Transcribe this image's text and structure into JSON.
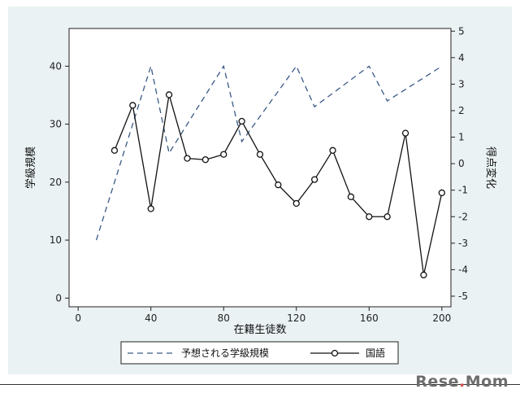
{
  "chart_data": {
    "type": "line",
    "title": "",
    "xlabel": "在籍生徒数",
    "ylabel_left": "学級規模",
    "ylabel_right": "得点変化",
    "xlim": [
      -5,
      205
    ],
    "ylim_left": [
      -1.5,
      46.5
    ],
    "ylim_right": [
      -5.4,
      5.1
    ],
    "x_ticks": [
      0,
      40,
      80,
      120,
      160,
      200
    ],
    "y_left_ticks": [
      0,
      10,
      20,
      30,
      40
    ],
    "y_right_ticks": [
      5,
      4,
      3,
      2,
      1,
      0,
      -1,
      -2,
      -3,
      -4,
      -5
    ],
    "grid": false,
    "legend_position": "bottom",
    "series": [
      {
        "name": "予想される学級規模",
        "axis": "left",
        "style": "dashed",
        "color": "#3a5a86",
        "x": [
          10,
          40,
          50,
          80,
          90,
          120,
          130,
          160,
          170,
          200
        ],
        "y": [
          10,
          40,
          25,
          40,
          27,
          40,
          33,
          40,
          34,
          40
        ]
      },
      {
        "name": "国語",
        "axis": "right",
        "style": "solid-circle-markers",
        "color": "#111111",
        "x": [
          20,
          30,
          40,
          50,
          60,
          70,
          80,
          90,
          100,
          110,
          120,
          130,
          140,
          150,
          160,
          170,
          180,
          190,
          200
        ],
        "y": [
          0.5,
          2.2,
          -1.7,
          2.6,
          0.2,
          0.15,
          0.35,
          1.6,
          0.35,
          -0.8,
          -1.5,
          -0.6,
          0.5,
          -1.25,
          -2.0,
          -2.0,
          1.15,
          -4.2,
          -1.1
        ]
      }
    ]
  },
  "watermark": {
    "text_before": "Rese",
    "text_after": "Mom"
  }
}
